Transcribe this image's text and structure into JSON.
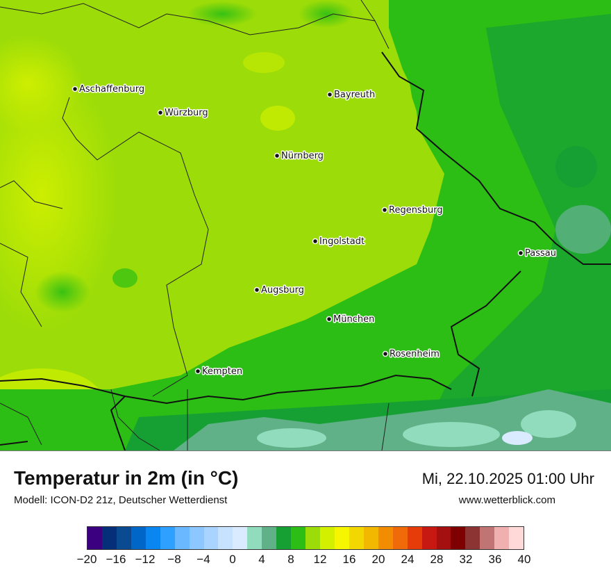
{
  "map": {
    "cities": [
      {
        "name": "Aschaffenburg"
      },
      {
        "name": "Würzburg"
      },
      {
        "name": "Bayreuth"
      },
      {
        "name": "Nürnberg"
      },
      {
        "name": "Regensburg"
      },
      {
        "name": "Ingolstadt"
      },
      {
        "name": "Passau"
      },
      {
        "name": "Augsburg"
      },
      {
        "name": "München"
      },
      {
        "name": "Rosenheim"
      },
      {
        "name": "Kempten"
      }
    ]
  },
  "footer": {
    "title": "Temperatur in 2m (in °C)",
    "model": "Modell: ICON-D2 21z, Deutscher Wetterdienst",
    "datetime": "Mi, 22.10.2025 01:00 Uhr",
    "website": "www.wetterblick.com"
  },
  "legend": {
    "colors": [
      "#3a0080",
      "#062f7a",
      "#0a4a90",
      "#0066c8",
      "#0a86f0",
      "#2ea0ff",
      "#6ab8ff",
      "#8cc8ff",
      "#a8d4ff",
      "#c6e2ff",
      "#daeaff",
      "#90dcbc",
      "#60b088",
      "#16a034",
      "#2cbe14",
      "#9cdc08",
      "#d2f000",
      "#f6f600",
      "#f2d800",
      "#f2b800",
      "#f28c00",
      "#f06a0a",
      "#e63c0a",
      "#c81812",
      "#a41010",
      "#7e0000",
      "#8c3434",
      "#c07474",
      "#f0b0b0",
      "#ffd8d8"
    ],
    "tick_labels": [
      "−20",
      "−16",
      "−12",
      "−8",
      "−4",
      "0",
      "4",
      "8",
      "12",
      "16",
      "20",
      "24",
      "28",
      "32",
      "36",
      "40"
    ],
    "range": [
      -20,
      40
    ]
  }
}
